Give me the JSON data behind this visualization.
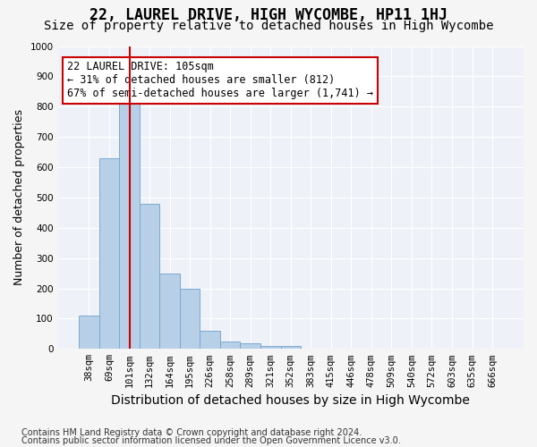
{
  "title": "22, LAUREL DRIVE, HIGH WYCOMBE, HP11 1HJ",
  "subtitle": "Size of property relative to detached houses in High Wycombe",
  "xlabel": "Distribution of detached houses by size in High Wycombe",
  "ylabel": "Number of detached properties",
  "bar_values": [
    110,
    630,
    810,
    480,
    250,
    200,
    60,
    25,
    18,
    10,
    10,
    0,
    0,
    0,
    0,
    0,
    0,
    0,
    0,
    0,
    0
  ],
  "categories": [
    "38sqm",
    "69sqm",
    "101sqm",
    "132sqm",
    "164sqm",
    "195sqm",
    "226sqm",
    "258sqm",
    "289sqm",
    "321sqm",
    "352sqm",
    "383sqm",
    "415sqm",
    "446sqm",
    "478sqm",
    "509sqm",
    "540sqm",
    "572sqm",
    "603sqm",
    "635sqm",
    "666sqm"
  ],
  "bar_color": "#b8cfe8",
  "bar_edge_color": "#7aaad0",
  "vline_x": 2,
  "vline_color": "#cc0000",
  "annotation_text": "22 LAUREL DRIVE: 105sqm\n← 31% of detached houses are smaller (812)\n67% of semi-detached houses are larger (1,741) →",
  "annotation_box_color": "#ffffff",
  "annotation_box_edge_color": "#cc0000",
  "ylim": [
    0,
    1000
  ],
  "yticks": [
    0,
    100,
    200,
    300,
    400,
    500,
    600,
    700,
    800,
    900,
    1000
  ],
  "footer_line1": "Contains HM Land Registry data © Crown copyright and database right 2024.",
  "footer_line2": "Contains public sector information licensed under the Open Government Licence v3.0.",
  "bg_color": "#eef2f8",
  "grid_color": "#ffffff",
  "title_fontsize": 12,
  "subtitle_fontsize": 10,
  "xlabel_fontsize": 10,
  "ylabel_fontsize": 9,
  "tick_fontsize": 7.5,
  "annotation_fontsize": 8.5,
  "footer_fontsize": 7
}
